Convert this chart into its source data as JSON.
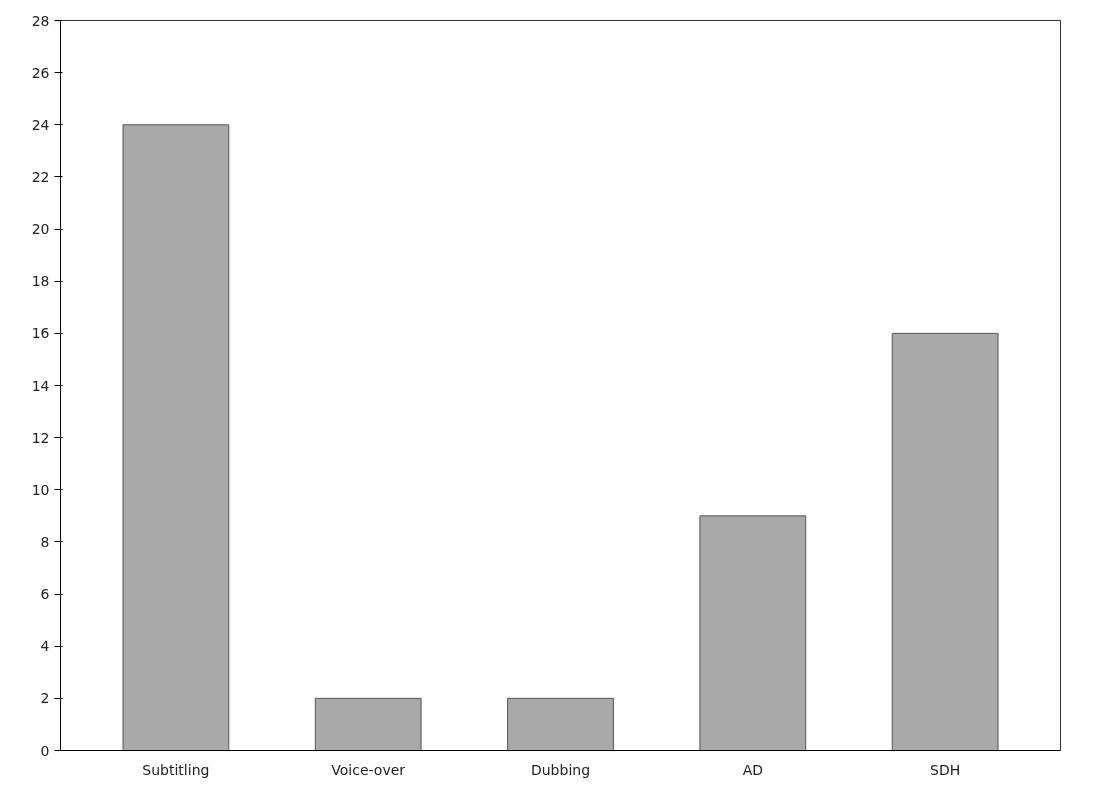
{
  "chart_data": {
    "type": "bar",
    "categories": [
      "Subtitling",
      "Voice-over",
      "Dubbing",
      "AD",
      "SDH"
    ],
    "values": [
      24,
      2,
      2,
      9,
      16
    ],
    "color": "#a9a9a9",
    "ylim": [
      0,
      28
    ],
    "yticks": [
      0,
      2,
      4,
      6,
      8,
      10,
      12,
      14,
      16,
      18,
      20,
      22,
      24,
      26,
      28
    ],
    "grid": false
  }
}
